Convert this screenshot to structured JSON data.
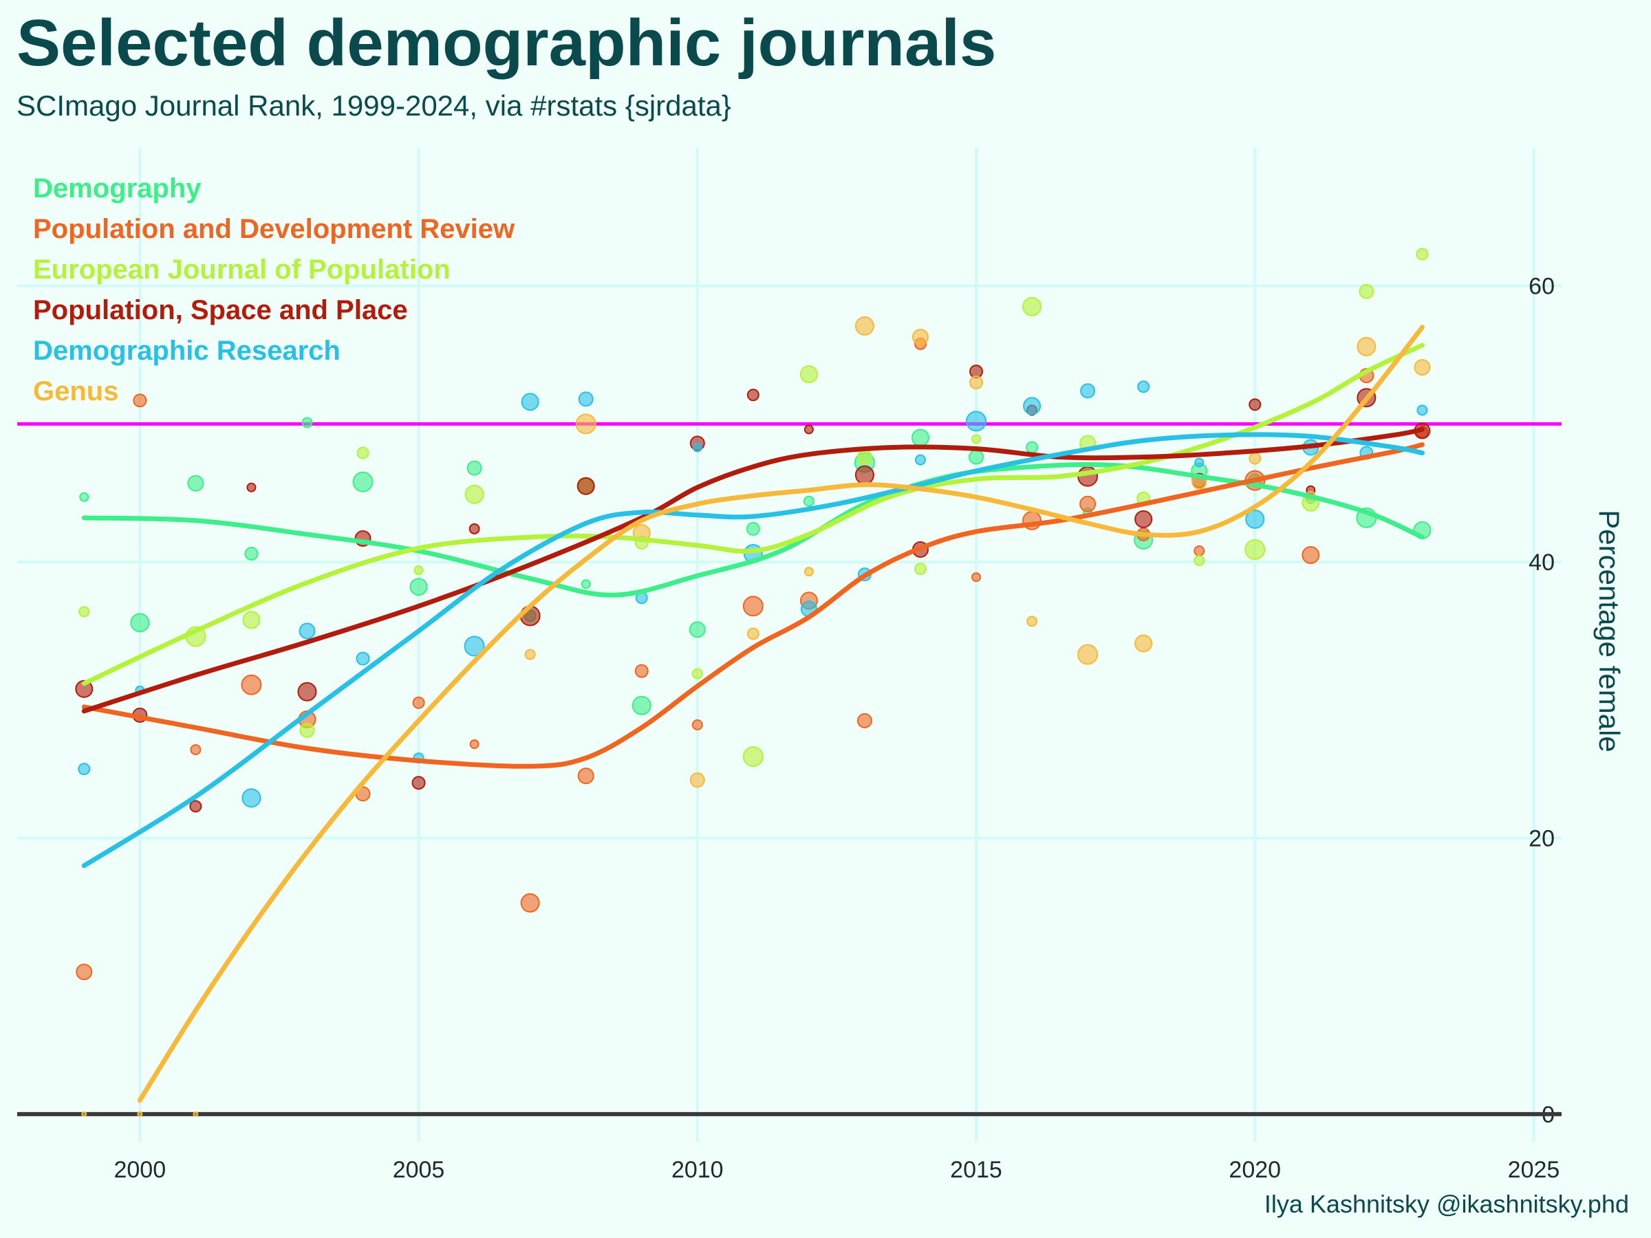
{
  "title": "Selected demographic journals",
  "subtitle": "SCImago Journal Rank, 1999-2024, via #rstats {sjrdata}",
  "caption": "Ilya Kashnitsky @ikashnitsky.phd",
  "chart_data": {
    "type": "scatter",
    "title": "Selected demographic journals",
    "subtitle": "SCImago Journal Rank, 1999-2024, via #rstats {sjrdata}",
    "xlabel": "",
    "ylabel": "Percentage female",
    "xlim": [
      1997.8,
      2025.5
    ],
    "ylim": [
      -2,
      70
    ],
    "x_ticks": [
      2000,
      2005,
      2010,
      2015,
      2020,
      2025
    ],
    "y_ticks": [
      0,
      20,
      40,
      60
    ],
    "y_axis_position": "right",
    "grid": true,
    "legend_placement": "top-left",
    "reference_line": {
      "y": 50,
      "color": "#ff00ff"
    },
    "baseline": {
      "y": 0,
      "color": "#3a3a3a"
    },
    "series": [
      {
        "name": "Demography",
        "color": "#3dee8a",
        "points": [
          [
            1999,
            44.7
          ],
          [
            2000,
            35.6
          ],
          [
            2001,
            45.7
          ],
          [
            2002,
            40.6
          ],
          [
            2003,
            50.1
          ],
          [
            2004,
            45.8
          ],
          [
            2005,
            38.2
          ],
          [
            2006,
            46.8
          ],
          [
            2007,
            36.1
          ],
          [
            2008,
            38.4
          ],
          [
            2009,
            29.6
          ],
          [
            2010,
            35.1
          ],
          [
            2011,
            42.4
          ],
          [
            2012,
            44.4
          ],
          [
            2013,
            47.2
          ],
          [
            2014,
            49.0
          ],
          [
            2015,
            47.6
          ],
          [
            2016,
            48.3
          ],
          [
            2017,
            43.6
          ],
          [
            2018,
            41.6
          ],
          [
            2019,
            46.6
          ],
          [
            2020,
            45.9
          ],
          [
            2021,
            44.6
          ],
          [
            2022,
            43.2
          ],
          [
            2023,
            42.3
          ]
        ],
        "smooth": [
          [
            1999,
            43.2
          ],
          [
            2001,
            43.0
          ],
          [
            2003,
            42.0
          ],
          [
            2005,
            40.8
          ],
          [
            2007,
            38.8
          ],
          [
            2008.5,
            37.6
          ],
          [
            2010,
            39.0
          ],
          [
            2011.5,
            40.8
          ],
          [
            2013,
            44.2
          ],
          [
            2014.5,
            46.2
          ],
          [
            2016,
            46.9
          ],
          [
            2017.5,
            47.0
          ],
          [
            2019,
            46.2
          ],
          [
            2020.5,
            45.2
          ],
          [
            2022,
            43.6
          ],
          [
            2023,
            41.8
          ]
        ]
      },
      {
        "name": "Population and Development Review",
        "color": "#f06620",
        "points": [
          [
            1999,
            10.3
          ],
          [
            2000,
            51.7
          ],
          [
            2001,
            26.4
          ],
          [
            2002,
            31.1
          ],
          [
            2003,
            28.6
          ],
          [
            2004,
            23.2
          ],
          [
            2005,
            29.8
          ],
          [
            2006,
            26.8
          ],
          [
            2007,
            15.3
          ],
          [
            2008,
            24.5
          ],
          [
            2009,
            32.1
          ],
          [
            2010,
            28.2
          ],
          [
            2011,
            36.8
          ],
          [
            2012,
            37.2
          ],
          [
            2013,
            28.5
          ],
          [
            2014,
            55.8
          ],
          [
            2015,
            38.9
          ],
          [
            2016,
            43.0
          ],
          [
            2017,
            44.2
          ],
          [
            2018,
            42.0
          ],
          [
            2019,
            40.8
          ],
          [
            2020,
            45.9
          ],
          [
            2021,
            40.5
          ],
          [
            2022,
            53.5
          ],
          [
            2023,
            49.4
          ]
        ],
        "smooth": [
          [
            1999,
            29.5
          ],
          [
            2001,
            28.0
          ],
          [
            2003,
            26.5
          ],
          [
            2005,
            25.6
          ],
          [
            2007,
            25.2
          ],
          [
            2008,
            25.8
          ],
          [
            2009,
            28.0
          ],
          [
            2010,
            31.0
          ],
          [
            2011,
            33.8
          ],
          [
            2012,
            36.0
          ],
          [
            2013,
            39.0
          ],
          [
            2014,
            41.0
          ],
          [
            2015,
            42.2
          ],
          [
            2016.5,
            43.0
          ],
          [
            2018,
            44.2
          ],
          [
            2019.5,
            45.5
          ],
          [
            2021,
            46.8
          ],
          [
            2022.5,
            48.0
          ],
          [
            2023,
            48.5
          ]
        ]
      },
      {
        "name": "European Journal of Population",
        "color": "#b4f23b",
        "points": [
          [
            1999,
            36.4
          ],
          [
            2001,
            34.6
          ],
          [
            2002,
            35.8
          ],
          [
            2003,
            27.8
          ],
          [
            2004,
            47.9
          ],
          [
            2005,
            39.4
          ],
          [
            2006,
            44.9
          ],
          [
            2008,
            45.5
          ],
          [
            2009,
            41.4
          ],
          [
            2010,
            31.9
          ],
          [
            2011,
            25.9
          ],
          [
            2012,
            53.6
          ],
          [
            2013,
            47.6
          ],
          [
            2014,
            39.5
          ],
          [
            2015,
            48.9
          ],
          [
            2016,
            58.5
          ],
          [
            2017,
            48.6
          ],
          [
            2018,
            44.6
          ],
          [
            2019,
            40.1
          ],
          [
            2020,
            40.9
          ],
          [
            2021,
            44.3
          ],
          [
            2022,
            59.6
          ],
          [
            2023,
            62.3
          ]
        ],
        "smooth": [
          [
            1999,
            31.2
          ],
          [
            2001,
            35.0
          ],
          [
            2003,
            38.5
          ],
          [
            2005,
            41.0
          ],
          [
            2007,
            41.8
          ],
          [
            2008.5,
            41.8
          ],
          [
            2010,
            41.2
          ],
          [
            2011,
            40.8
          ],
          [
            2012,
            42.0
          ],
          [
            2013.5,
            44.8
          ],
          [
            2015,
            46.0
          ],
          [
            2016.5,
            46.2
          ],
          [
            2018,
            47.2
          ],
          [
            2019.5,
            49.0
          ],
          [
            2021,
            51.5
          ],
          [
            2022,
            53.8
          ],
          [
            2023,
            55.7
          ]
        ]
      },
      {
        "name": "Population, Space and Place",
        "color": "#b21c0d",
        "points": [
          [
            1999,
            30.8
          ],
          [
            2000,
            28.9
          ],
          [
            2001,
            22.3
          ],
          [
            2002,
            45.4
          ],
          [
            2003,
            30.6
          ],
          [
            2004,
            41.7
          ],
          [
            2005,
            24.0
          ],
          [
            2006,
            42.4
          ],
          [
            2007,
            36.1
          ],
          [
            2008,
            45.5
          ],
          [
            2010,
            48.6
          ],
          [
            2011,
            52.1
          ],
          [
            2012,
            49.6
          ],
          [
            2013,
            46.3
          ],
          [
            2014,
            40.9
          ],
          [
            2015,
            53.8
          ],
          [
            2016,
            51.0
          ],
          [
            2017,
            46.2
          ],
          [
            2018,
            43.1
          ],
          [
            2019,
            45.9
          ],
          [
            2020,
            51.4
          ],
          [
            2021,
            45.2
          ],
          [
            2022,
            51.9
          ],
          [
            2023,
            49.5
          ]
        ],
        "smooth": [
          [
            1999,
            29.2
          ],
          [
            2001,
            31.8
          ],
          [
            2003,
            34.2
          ],
          [
            2005,
            36.8
          ],
          [
            2007,
            39.8
          ],
          [
            2009,
            43.2
          ],
          [
            2010,
            45.4
          ],
          [
            2011,
            46.9
          ],
          [
            2012,
            47.8
          ],
          [
            2013.5,
            48.3
          ],
          [
            2015,
            48.2
          ],
          [
            2016.5,
            47.6
          ],
          [
            2018,
            47.6
          ],
          [
            2019.5,
            47.9
          ],
          [
            2021,
            48.4
          ],
          [
            2022.5,
            49.2
          ],
          [
            2023,
            49.6
          ]
        ]
      },
      {
        "name": "Demographic Research",
        "color": "#29c0e6",
        "points": [
          [
            1999,
            25.0
          ],
          [
            2000,
            30.7
          ],
          [
            2002,
            22.9
          ],
          [
            2003,
            35.0
          ],
          [
            2004,
            33.0
          ],
          [
            2005,
            25.8
          ],
          [
            2006,
            33.9
          ],
          [
            2007,
            51.6
          ],
          [
            2008,
            51.8
          ],
          [
            2009,
            37.4
          ],
          [
            2010,
            48.3
          ],
          [
            2011,
            40.6
          ],
          [
            2012,
            36.6
          ],
          [
            2013,
            39.1
          ],
          [
            2014,
            47.4
          ],
          [
            2015,
            50.2
          ],
          [
            2016,
            51.3
          ],
          [
            2017,
            52.4
          ],
          [
            2018,
            52.7
          ],
          [
            2019,
            47.2
          ],
          [
            2020,
            43.1
          ],
          [
            2021,
            48.3
          ],
          [
            2022,
            47.9
          ],
          [
            2023,
            51.0
          ]
        ],
        "smooth": [
          [
            1999,
            18.0
          ],
          [
            2001,
            23.0
          ],
          [
            2003,
            29.0
          ],
          [
            2005,
            35.0
          ],
          [
            2006.5,
            39.5
          ],
          [
            2008,
            42.8
          ],
          [
            2009,
            43.6
          ],
          [
            2010,
            43.4
          ],
          [
            2011,
            43.3
          ],
          [
            2012.5,
            44.2
          ],
          [
            2014,
            45.6
          ],
          [
            2015,
            46.6
          ],
          [
            2016.5,
            47.8
          ],
          [
            2018,
            48.8
          ],
          [
            2019.5,
            49.2
          ],
          [
            2021,
            49.1
          ],
          [
            2022.5,
            48.3
          ],
          [
            2023,
            47.9
          ]
        ]
      },
      {
        "name": "Genus",
        "color": "#f7b93a",
        "points": [
          [
            1999,
            0.0
          ],
          [
            2000,
            0.0
          ],
          [
            2001,
            0.0
          ],
          [
            2007,
            33.3
          ],
          [
            2008,
            50.0
          ],
          [
            2009,
            42.1
          ],
          [
            2010,
            24.2
          ],
          [
            2011,
            34.8
          ],
          [
            2012,
            39.3
          ],
          [
            2013,
            57.1
          ],
          [
            2014,
            56.3
          ],
          [
            2015,
            53.0
          ],
          [
            2016,
            35.7
          ],
          [
            2017,
            33.3
          ],
          [
            2018,
            34.1
          ],
          [
            2019,
            45.8
          ],
          [
            2020,
            47.5
          ],
          [
            2021,
            44.8
          ],
          [
            2022,
            55.6
          ],
          [
            2023,
            54.1
          ]
        ],
        "smooth": [
          [
            2000,
            1.0
          ],
          [
            2001,
            7.5
          ],
          [
            2002,
            13.5
          ],
          [
            2003,
            19.0
          ],
          [
            2004,
            24.0
          ],
          [
            2005,
            28.5
          ],
          [
            2006,
            32.8
          ],
          [
            2007,
            36.8
          ],
          [
            2008,
            40.2
          ],
          [
            2009,
            43.0
          ],
          [
            2010,
            44.2
          ],
          [
            2011,
            44.8
          ],
          [
            2012,
            45.2
          ],
          [
            2013,
            45.6
          ],
          [
            2014,
            45.3
          ],
          [
            2015,
            44.7
          ],
          [
            2016,
            43.8
          ],
          [
            2017,
            42.8
          ],
          [
            2018,
            42.0
          ],
          [
            2019,
            42.2
          ],
          [
            2020,
            44.0
          ],
          [
            2021,
            47.2
          ],
          [
            2022,
            51.8
          ],
          [
            2023,
            57.0
          ]
        ]
      }
    ]
  }
}
